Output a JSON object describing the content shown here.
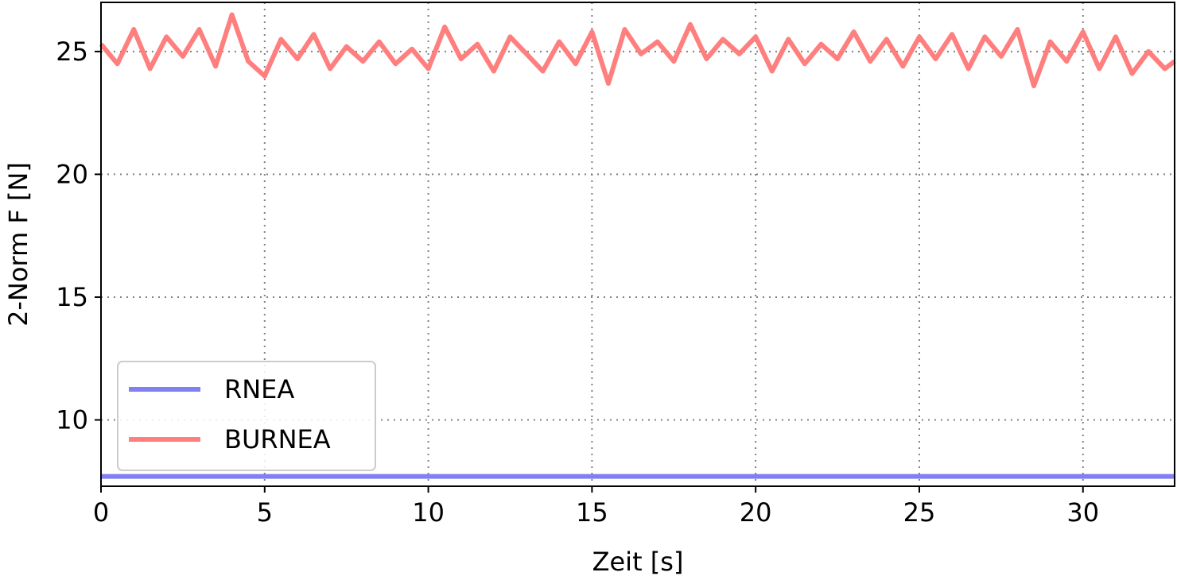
{
  "chart_data": {
    "type": "line",
    "title": "",
    "xlabel": "Zeit [s]",
    "ylabel": "2-Norm F [N]",
    "xlim": [
      0,
      32.8
    ],
    "ylim": [
      7.3,
      27.0
    ],
    "xticks": [
      0,
      5,
      10,
      15,
      20,
      25,
      30
    ],
    "yticks": [
      10,
      15,
      20,
      25
    ],
    "grid": true,
    "legend_position": "lower-left",
    "series": [
      {
        "name": "RNEA",
        "color": "#8080f0",
        "x": [
          0,
          32.8
        ],
        "values": [
          7.7,
          7.7
        ]
      },
      {
        "name": "BURNEA",
        "color": "#ff7f7f",
        "x": [
          0,
          0.5,
          1.0,
          1.5,
          2.0,
          2.5,
          3.0,
          3.5,
          4.0,
          4.5,
          5.0,
          5.5,
          6.0,
          6.5,
          7.0,
          7.5,
          8.0,
          8.5,
          9.0,
          9.5,
          10.0,
          10.5,
          11.0,
          11.5,
          12.0,
          12.5,
          13.0,
          13.5,
          14.0,
          14.5,
          15.0,
          15.5,
          16.0,
          16.5,
          17.0,
          17.5,
          18.0,
          18.5,
          19.0,
          19.5,
          20.0,
          20.5,
          21.0,
          21.5,
          22.0,
          22.5,
          23.0,
          23.5,
          24.0,
          24.5,
          25.0,
          25.5,
          26.0,
          26.5,
          27.0,
          27.5,
          28.0,
          28.5,
          29.0,
          29.5,
          30.0,
          30.5,
          31.0,
          31.5,
          32.0,
          32.5,
          32.8
        ],
        "values": [
          25.3,
          24.5,
          25.9,
          24.3,
          25.6,
          24.8,
          25.9,
          24.4,
          26.5,
          24.6,
          24.0,
          25.5,
          24.7,
          25.7,
          24.3,
          25.2,
          24.6,
          25.4,
          24.5,
          25.1,
          24.3,
          26.0,
          24.7,
          25.3,
          24.2,
          25.6,
          24.9,
          24.2,
          25.4,
          24.5,
          25.8,
          23.7,
          25.9,
          24.9,
          25.4,
          24.6,
          26.1,
          24.7,
          25.5,
          24.9,
          25.6,
          24.2,
          25.5,
          24.5,
          25.3,
          24.7,
          25.8,
          24.6,
          25.5,
          24.4,
          25.6,
          24.7,
          25.7,
          24.3,
          25.6,
          24.8,
          25.9,
          23.6,
          25.4,
          24.6,
          25.8,
          24.3,
          25.6,
          24.1,
          25.0,
          24.3,
          24.6
        ]
      }
    ]
  }
}
